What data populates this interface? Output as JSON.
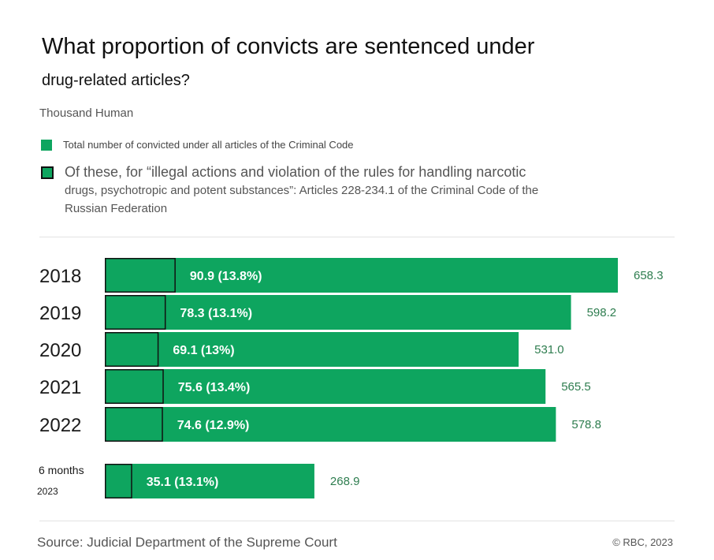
{
  "title_line1": "What proportion of convicts are sentenced under",
  "title_line2": "drug-related articles?",
  "unit": "Thousand Human",
  "legend": {
    "total": "Total number of convicted under all articles of the Criminal Code",
    "drug_line1": "Of these, for “illegal actions and violation of the rules for handling narcotic",
    "drug_line2": "drugs, psychotropic and potent substances”: Articles 228-234.1 of the Criminal Code of the",
    "drug_line3": "Russian Federation"
  },
  "colors": {
    "bar": "#0ea55f",
    "outline": "#111111",
    "total_label": "#2e7d4f"
  },
  "chart_data": {
    "type": "bar",
    "orientation": "horizontal",
    "categories": [
      "2018",
      "2019",
      "2020",
      "2021",
      "2022",
      "6 months 2023"
    ],
    "series": [
      {
        "name": "Total number of convicted under all articles of the Criminal Code",
        "values": [
          658.3,
          598.2,
          531.0,
          565.5,
          578.8,
          268.9
        ]
      },
      {
        "name": "Of these, for “illegal actions and violation of the rules for handling narcotic drugs, psychotropic and potent substances”: Articles 228-234.1 of the Criminal Code of the Russian Federation",
        "values": [
          90.9,
          78.3,
          69.1,
          75.6,
          74.6,
          35.1
        ]
      }
    ],
    "total_labels": [
      "658.3",
      "598.2",
      "531.0",
      "565.5",
      "578.8",
      "268.9"
    ],
    "drug_labels": [
      "90.9 (13.8%)",
      "78.3 (13.1%)",
      "69.1 (13%)",
      "75.6 (13.4%)",
      "74.6 (12.9%)",
      "35.1 (13.1%)"
    ],
    "partial_year": {
      "line1": "6 months",
      "line2": "2023"
    },
    "xlim": [
      0,
      658.3
    ]
  },
  "source": "Source: Judicial Department of the Supreme Court",
  "copyright": "© RBC, 2023"
}
